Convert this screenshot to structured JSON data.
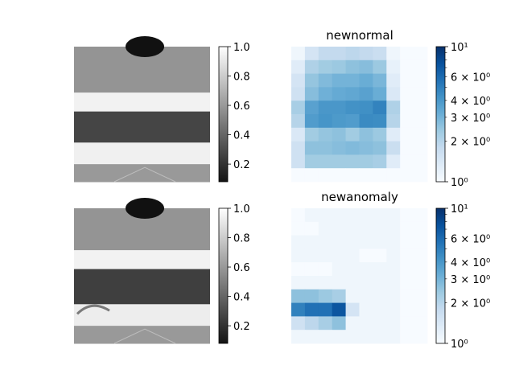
{
  "figure": {
    "background": "#ffffff"
  },
  "chart_data": [
    {
      "type": "image",
      "title": "",
      "colormap": "gray",
      "colorbar": {
        "ticks": [
          0.2,
          0.4,
          0.6,
          0.8,
          1.0
        ],
        "tick_labels": [
          "0.2",
          "0.4",
          "0.6",
          "0.8",
          "1.0"
        ],
        "range": [
          0.08,
          1.0
        ]
      },
      "image_bands": [
        {
          "from": 0.0,
          "to": 0.34,
          "value": 0.58
        },
        {
          "from": 0.34,
          "to": 0.48,
          "value": 0.95
        },
        {
          "from": 0.48,
          "to": 0.71,
          "value": 0.27
        },
        {
          "from": 0.71,
          "to": 0.87,
          "value": 0.94
        },
        {
          "from": 0.87,
          "to": 1.0,
          "value": 0.6
        }
      ]
    },
    {
      "type": "heatmap",
      "title": "newnormal",
      "colormap": "Blues",
      "scale": "log",
      "colorbar": {
        "range": [
          1,
          10
        ],
        "major_ticks": [
          "10^1",
          "10^0"
        ],
        "tick_labels": [
          "10¹",
          "6 × 10⁰",
          "4 × 10⁰",
          "3 × 10⁰",
          "2 × 10⁰",
          "10⁰"
        ],
        "tick_values": [
          10,
          6,
          4,
          3,
          2,
          1
        ]
      },
      "values": [
        [
          1.1,
          1.5,
          1.8,
          1.8,
          1.9,
          1.8,
          1.7,
          1.1,
          1.0,
          1.0
        ],
        [
          1.3,
          2.1,
          2.3,
          2.4,
          2.6,
          2.7,
          2.4,
          1.2,
          1.0,
          1.0
        ],
        [
          1.5,
          2.5,
          2.8,
          3.0,
          3.0,
          3.2,
          2.9,
          1.3,
          1.0,
          1.0
        ],
        [
          1.6,
          2.7,
          3.1,
          3.3,
          3.4,
          3.6,
          3.2,
          1.4,
          1.0,
          1.0
        ],
        [
          2.2,
          3.6,
          4.0,
          4.0,
          4.2,
          4.3,
          4.8,
          2.1,
          1.0,
          1.0
        ],
        [
          2.0,
          3.8,
          4.1,
          3.9,
          3.8,
          4.5,
          4.4,
          2.0,
          1.0,
          1.0
        ],
        [
          1.4,
          2.3,
          2.5,
          2.6,
          2.3,
          2.6,
          2.4,
          1.3,
          1.0,
          1.0
        ],
        [
          1.6,
          2.6,
          2.6,
          2.7,
          2.8,
          2.7,
          2.6,
          1.7,
          1.0,
          1.0
        ],
        [
          1.6,
          2.3,
          2.3,
          2.3,
          2.3,
          2.3,
          2.2,
          1.3,
          1.0,
          1.0
        ],
        [
          1.0,
          1.0,
          1.0,
          1.0,
          1.0,
          1.0,
          1.0,
          1.0,
          1.0,
          1.0
        ]
      ]
    },
    {
      "type": "image",
      "title": "",
      "colormap": "gray",
      "colorbar": {
        "ticks": [
          0.2,
          0.4,
          0.6,
          0.8,
          1.0
        ],
        "tick_labels": [
          "0.2",
          "0.4",
          "0.6",
          "0.8",
          "1.0"
        ],
        "range": [
          0.08,
          1.0
        ]
      },
      "image_bands": [
        {
          "from": 0.0,
          "to": 0.31,
          "value": 0.58
        },
        {
          "from": 0.31,
          "to": 0.45,
          "value": 0.95
        },
        {
          "from": 0.45,
          "to": 0.71,
          "value": 0.25
        },
        {
          "from": 0.71,
          "to": 0.87,
          "value": 0.93
        },
        {
          "from": 0.87,
          "to": 1.0,
          "value": 0.6
        }
      ]
    },
    {
      "type": "heatmap",
      "title": "newanomaly",
      "colormap": "Blues",
      "scale": "log",
      "colorbar": {
        "range": [
          1,
          10
        ],
        "tick_labels": [
          "10¹",
          "6 × 10⁰",
          "4 × 10⁰",
          "3 × 10⁰",
          "2 × 10⁰",
          "10⁰"
        ],
        "tick_values": [
          10,
          6,
          4,
          3,
          2,
          1
        ]
      },
      "values": [
        [
          1.0,
          1.1,
          1.1,
          1.1,
          1.1,
          1.1,
          1.1,
          1.1,
          1.0,
          1.0
        ],
        [
          1.0,
          1.0,
          1.1,
          1.1,
          1.1,
          1.1,
          1.1,
          1.1,
          1.0,
          1.0
        ],
        [
          1.1,
          1.1,
          1.1,
          1.1,
          1.1,
          1.1,
          1.1,
          1.1,
          1.0,
          1.0
        ],
        [
          1.1,
          1.1,
          1.1,
          1.1,
          1.1,
          1.0,
          1.0,
          1.1,
          1.0,
          1.0
        ],
        [
          1.0,
          1.0,
          1.0,
          1.1,
          1.1,
          1.1,
          1.1,
          1.1,
          1.0,
          1.0
        ],
        [
          1.1,
          1.1,
          1.1,
          1.1,
          1.1,
          1.1,
          1.1,
          1.1,
          1.0,
          1.0
        ],
        [
          2.6,
          2.6,
          2.4,
          2.2,
          1.1,
          1.1,
          1.1,
          1.1,
          1.0,
          1.0
        ],
        [
          4.9,
          5.6,
          5.6,
          7.2,
          1.5,
          1.1,
          1.1,
          1.1,
          1.0,
          1.0
        ],
        [
          1.6,
          1.9,
          2.2,
          2.6,
          1.1,
          1.1,
          1.1,
          1.1,
          1.0,
          1.0
        ],
        [
          1.1,
          1.1,
          1.1,
          1.1,
          1.1,
          1.1,
          1.1,
          1.1,
          1.0,
          1.0
        ]
      ]
    }
  ]
}
